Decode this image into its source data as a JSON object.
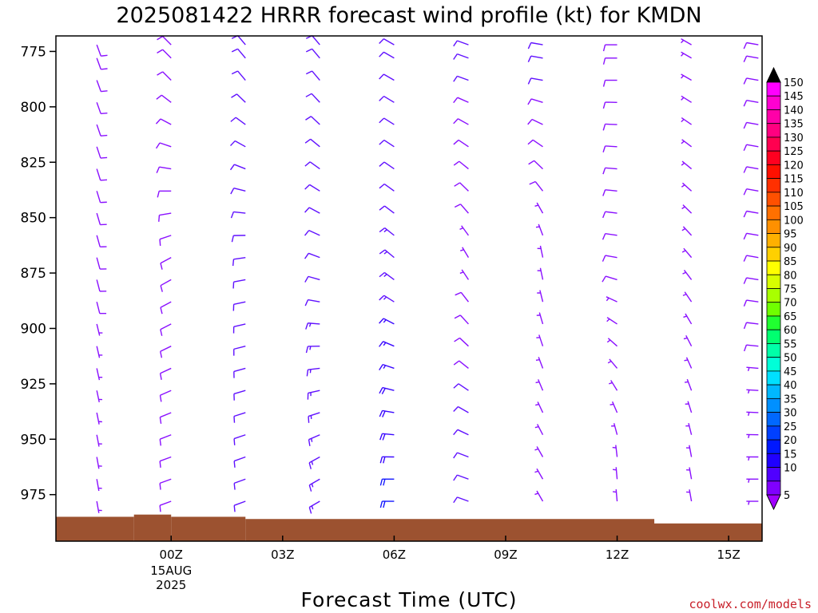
{
  "chart_data": {
    "type": "wind_barb_profile",
    "title": "2025081422 HRRR forecast wind profile (kt) for KMDN",
    "xlabel": "Forecast Time (UTC)",
    "ylabel": "",
    "units": "kt",
    "y_axis": {
      "ticks": [
        775,
        800,
        825,
        850,
        875,
        900,
        925,
        950,
        975
      ],
      "range": [
        996,
        768
      ],
      "levels": [
        772,
        778,
        788,
        798,
        808,
        818,
        828,
        838,
        848,
        858,
        868,
        878,
        888,
        898,
        908,
        918,
        928,
        938,
        948,
        958,
        968,
        978
      ]
    },
    "x_axis": {
      "range": [
        -3.1,
        15.9
      ],
      "ticks": [
        {
          "value": 0,
          "label": "00Z",
          "sub": [
            "15AUG",
            "2025"
          ]
        },
        {
          "value": 3,
          "label": "03Z",
          "sub": []
        },
        {
          "value": 6,
          "label": "06Z",
          "sub": []
        },
        {
          "value": 9,
          "label": "09Z",
          "sub": []
        },
        {
          "value": 12,
          "label": "12Z",
          "sub": []
        },
        {
          "value": 15,
          "label": "15Z",
          "sub": []
        }
      ]
    },
    "columns": [
      {
        "hour": -2,
        "wind": [
          {
            "p": 790,
            "dir": 160,
            "spd": 8
          },
          {
            "p": 870,
            "dir": 165,
            "spd": 8
          },
          {
            "p": 960,
            "dir": 170,
            "spd": 6
          }
        ]
      },
      {
        "hour": 0,
        "wind": [
          {
            "p": 790,
            "dir": 315,
            "spd": 8
          },
          {
            "p": 870,
            "dir": 240,
            "spd": 10
          },
          {
            "p": 960,
            "dir": 250,
            "spd": 8
          }
        ]
      },
      {
        "hour": 2,
        "wind": [
          {
            "p": 790,
            "dir": 320,
            "spd": 10
          },
          {
            "p": 870,
            "dir": 260,
            "spd": 12
          },
          {
            "p": 960,
            "dir": 250,
            "spd": 11
          }
        ]
      },
      {
        "hour": 4,
        "wind": [
          {
            "p": 790,
            "dir": 320,
            "spd": 12
          },
          {
            "p": 870,
            "dir": 290,
            "spd": 12
          },
          {
            "p": 960,
            "dir": 240,
            "spd": 14
          }
        ]
      },
      {
        "hour": 6,
        "wind": [
          {
            "p": 790,
            "dir": 300,
            "spd": 10
          },
          {
            "p": 870,
            "dir": 310,
            "spd": 13
          },
          {
            "p": 960,
            "dir": 270,
            "spd": 20
          }
        ]
      },
      {
        "hour": 8,
        "wind": [
          {
            "p": 790,
            "dir": 290,
            "spd": 10
          },
          {
            "p": 870,
            "dir": 330,
            "spd": 7
          },
          {
            "p": 960,
            "dir": 290,
            "spd": 12
          }
        ]
      },
      {
        "hour": 10,
        "wind": [
          {
            "p": 790,
            "dir": 280,
            "spd": 10
          },
          {
            "p": 870,
            "dir": 350,
            "spd": 6
          },
          {
            "p": 960,
            "dir": 330,
            "spd": 6
          }
        ]
      },
      {
        "hour": 12,
        "wind": [
          {
            "p": 790,
            "dir": 270,
            "spd": 8
          },
          {
            "p": 870,
            "dir": 280,
            "spd": 8
          },
          {
            "p": 960,
            "dir": 355,
            "spd": 5
          }
        ]
      },
      {
        "hour": 14,
        "wind": [
          {
            "p": 790,
            "dir": 300,
            "spd": 7
          },
          {
            "p": 870,
            "dir": 320,
            "spd": 6
          },
          {
            "p": 960,
            "dir": 350,
            "spd": 4
          }
        ]
      },
      {
        "hour": 15.8,
        "wind": [
          {
            "p": 790,
            "dir": 280,
            "spd": 8
          },
          {
            "p": 870,
            "dir": 280,
            "spd": 8
          },
          {
            "p": 960,
            "dir": 270,
            "spd": 7
          }
        ]
      }
    ],
    "terrain": {
      "color": "#9c5230",
      "steps": [
        {
          "x0": -3.1,
          "x1": -1.0,
          "p": 985
        },
        {
          "x0": -1.0,
          "x1": 0.0,
          "p": 984
        },
        {
          "x0": 0.0,
          "x1": 2.0,
          "p": 985
        },
        {
          "x0": 2.0,
          "x1": 10.0,
          "p": 986
        },
        {
          "x0": 10.0,
          "x1": 13.0,
          "p": 986
        },
        {
          "x0": 12.0,
          "x1": 12.5,
          "p": 987
        },
        {
          "x0": 12.5,
          "x1": 15.9,
          "p": 988
        }
      ]
    },
    "colorbar": {
      "levels": [
        150,
        145,
        140,
        135,
        130,
        125,
        120,
        115,
        110,
        105,
        100,
        95,
        90,
        85,
        80,
        75,
        70,
        65,
        60,
        55,
        50,
        45,
        40,
        35,
        30,
        25,
        20,
        15,
        10,
        5
      ],
      "colors": [
        "#ff00ff",
        "#ff00d0",
        "#ff00a8",
        "#ff0080",
        "#ff0050",
        "#ff0020",
        "#ff1000",
        "#ff3000",
        "#ff5000",
        "#ff7000",
        "#ff9000",
        "#ffb000",
        "#ffd000",
        "#ffff00",
        "#d8ff00",
        "#a8ff00",
        "#70ff00",
        "#20ff30",
        "#00ff70",
        "#00ffa8",
        "#00ffd8",
        "#00e0ff",
        "#00b8ff",
        "#0090ff",
        "#0068ff",
        "#0040ff",
        "#0018ff",
        "#2000ff",
        "#5000ff",
        "#8000ff"
      ],
      "top_color": "#000000",
      "bottom_color": "#a000ff"
    },
    "credit": "coolwx.com/models",
    "grid": false
  }
}
